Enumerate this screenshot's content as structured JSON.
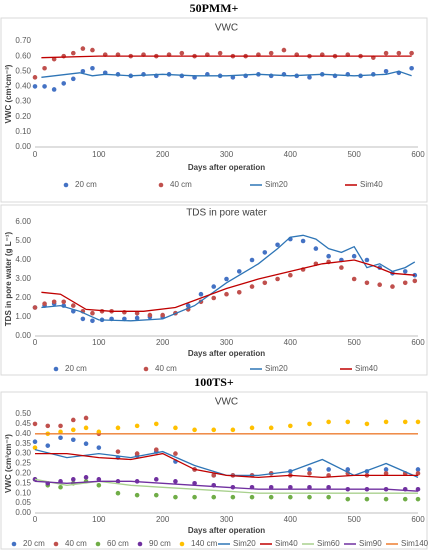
{
  "headings": [
    "50PMM+",
    "100TS+"
  ],
  "chart_data": [
    {
      "type": "scatter-line",
      "title": "VWC",
      "x_label": "Days after operation",
      "y_label": "VWC (cm³cm⁻³)",
      "xlim": [
        0,
        600
      ],
      "xticks": [
        0,
        100,
        200,
        300,
        400,
        500,
        600
      ],
      "ylim": [
        0,
        0.7
      ],
      "yticks": [
        {
          "value": 0,
          "label": "0.00"
        },
        {
          "value": 0.1,
          "label": "0.10"
        },
        {
          "value": 0.2,
          "label": "0.20"
        },
        {
          "value": 0.3,
          "label": "0.30"
        },
        {
          "value": 0.4,
          "label": "0.40"
        },
        {
          "value": 0.5,
          "label": "0.50"
        },
        {
          "value": 0.6,
          "label": "0.60"
        },
        {
          "value": 0.7,
          "label": "0.70"
        }
      ],
      "grid": false,
      "legend": "bottom",
      "series": [
        {
          "name": "20 cm",
          "color": "#4472c4",
          "style": "markers",
          "x": [
            0,
            15,
            30,
            45,
            60,
            75,
            90,
            110,
            130,
            150,
            170,
            190,
            210,
            230,
            250,
            270,
            290,
            310,
            330,
            350,
            370,
            390,
            410,
            430,
            450,
            470,
            490,
            510,
            530,
            550,
            570,
            590
          ],
          "values": [
            0.4,
            0.4,
            0.38,
            0.42,
            0.45,
            0.5,
            0.52,
            0.49,
            0.48,
            0.47,
            0.48,
            0.47,
            0.48,
            0.47,
            0.46,
            0.48,
            0.47,
            0.46,
            0.47,
            0.48,
            0.47,
            0.48,
            0.47,
            0.46,
            0.48,
            0.47,
            0.48,
            0.47,
            0.48,
            0.5,
            0.49,
            0.52
          ]
        },
        {
          "name": "40 cm",
          "color": "#c0504d",
          "style": "markers",
          "x": [
            0,
            15,
            30,
            45,
            60,
            75,
            90,
            110,
            130,
            150,
            170,
            190,
            210,
            230,
            250,
            270,
            290,
            310,
            330,
            350,
            370,
            390,
            410,
            430,
            450,
            470,
            490,
            510,
            530,
            550,
            570,
            590
          ],
          "values": [
            0.46,
            0.52,
            0.58,
            0.6,
            0.62,
            0.65,
            0.64,
            0.61,
            0.61,
            0.6,
            0.61,
            0.6,
            0.61,
            0.62,
            0.6,
            0.61,
            0.62,
            0.6,
            0.6,
            0.61,
            0.62,
            0.64,
            0.61,
            0.6,
            0.61,
            0.6,
            0.61,
            0.6,
            0.59,
            0.62,
            0.62,
            0.62
          ]
        },
        {
          "name": "Sim20",
          "color": "#2e75b6",
          "style": "line",
          "x": [
            10,
            30,
            50,
            70,
            90,
            110,
            150,
            200,
            250,
            300,
            350,
            400,
            450,
            500,
            550,
            570,
            590
          ],
          "values": [
            0.46,
            0.47,
            0.48,
            0.49,
            0.47,
            0.48,
            0.47,
            0.48,
            0.47,
            0.47,
            0.48,
            0.47,
            0.48,
            0.47,
            0.48,
            0.5,
            0.47
          ]
        },
        {
          "name": "Sim40",
          "color": "#c00000",
          "style": "line",
          "x": [
            10,
            100,
            200,
            300,
            400,
            500,
            590
          ],
          "values": [
            0.59,
            0.6,
            0.6,
            0.6,
            0.6,
            0.6,
            0.6
          ]
        }
      ]
    },
    {
      "type": "scatter-line",
      "title": "TDS in pore water",
      "x_label": "Days after operation",
      "y_label": "TDS in pore water (g L⁻¹)",
      "xlim": [
        0,
        600
      ],
      "xticks": [
        0,
        100,
        200,
        300,
        400,
        500,
        600
      ],
      "ylim": [
        0,
        6
      ],
      "yticks": [
        {
          "value": 0,
          "label": "0.00"
        },
        {
          "value": 1,
          "label": "1.00"
        },
        {
          "value": 2,
          "label": "2.00"
        },
        {
          "value": 3,
          "label": "3.00"
        },
        {
          "value": 4,
          "label": "4.00"
        },
        {
          "value": 5,
          "label": "5.00"
        },
        {
          "value": 6,
          "label": "6.00"
        }
      ],
      "grid": false,
      "legend": "bottom",
      "series": [
        {
          "name": "20 cm",
          "color": "#4472c4",
          "style": "markers",
          "x": [
            0,
            15,
            30,
            45,
            60,
            75,
            90,
            105,
            120,
            140,
            160,
            180,
            200,
            220,
            240,
            260,
            280,
            300,
            320,
            340,
            360,
            380,
            400,
            420,
            440,
            460,
            480,
            500,
            520,
            540,
            560,
            580,
            595
          ],
          "values": [
            1.5,
            1.6,
            1.7,
            1.6,
            1.3,
            0.9,
            0.8,
            0.85,
            0.9,
            0.9,
            0.95,
            1.0,
            1.0,
            1.2,
            1.6,
            2.2,
            2.6,
            3.0,
            3.4,
            4.0,
            4.4,
            4.8,
            5.1,
            5.0,
            4.6,
            4.2,
            4.0,
            4.2,
            4.0,
            3.6,
            3.3,
            3.4,
            3.2
          ]
        },
        {
          "name": "40 cm",
          "color": "#c0504d",
          "style": "markers",
          "x": [
            0,
            15,
            30,
            45,
            60,
            75,
            90,
            105,
            120,
            140,
            160,
            180,
            200,
            220,
            240,
            260,
            280,
            300,
            320,
            340,
            360,
            380,
            400,
            420,
            440,
            460,
            480,
            500,
            520,
            540,
            560,
            580,
            595
          ],
          "values": [
            1.5,
            1.7,
            1.8,
            1.8,
            1.6,
            1.3,
            1.2,
            1.3,
            1.3,
            1.25,
            1.2,
            1.1,
            1.1,
            1.2,
            1.4,
            1.8,
            2.0,
            2.2,
            2.3,
            2.6,
            2.8,
            3.0,
            3.2,
            3.5,
            3.8,
            3.9,
            3.6,
            3.0,
            2.8,
            2.7,
            2.6,
            2.8,
            2.9
          ]
        },
        {
          "name": "Sim20",
          "color": "#2e75b6",
          "style": "line",
          "x": [
            10,
            40,
            70,
            100,
            150,
            200,
            250,
            300,
            350,
            380,
            400,
            420,
            440,
            460,
            480,
            500,
            520,
            540,
            560,
            580,
            595
          ],
          "values": [
            1.5,
            1.6,
            1.3,
            0.85,
            0.8,
            0.9,
            1.6,
            2.8,
            3.8,
            4.6,
            5.2,
            5.3,
            5.1,
            4.6,
            4.4,
            4.7,
            3.6,
            3.8,
            3.4,
            3.6,
            3.9
          ]
        },
        {
          "name": "Sim40",
          "color": "#c00000",
          "style": "line",
          "x": [
            10,
            40,
            80,
            120,
            170,
            220,
            260,
            300,
            350,
            400,
            450,
            500,
            530,
            560,
            595
          ],
          "values": [
            2.3,
            2.2,
            1.4,
            1.3,
            1.3,
            1.5,
            2.0,
            2.5,
            3.0,
            3.4,
            3.8,
            4.0,
            3.7,
            3.3,
            3.2
          ]
        }
      ]
    },
    {
      "type": "scatter-line",
      "title": "VWC",
      "x_label": "Days after operation",
      "y_label": "VWC (cm³cm⁻³)",
      "xlim": [
        0,
        600
      ],
      "xticks": [
        0,
        100,
        200,
        300,
        400,
        500,
        600
      ],
      "ylim": [
        0,
        0.5
      ],
      "yticks": [
        {
          "value": 0,
          "label": "0.00"
        },
        {
          "value": 0.05,
          "label": "0.05"
        },
        {
          "value": 0.1,
          "label": "0.10"
        },
        {
          "value": 0.15,
          "label": "0.15"
        },
        {
          "value": 0.2,
          "label": "0.20"
        },
        {
          "value": 0.25,
          "label": "0.25"
        },
        {
          "value": 0.3,
          "label": "0.30"
        },
        {
          "value": 0.35,
          "label": "0.35"
        },
        {
          "value": 0.4,
          "label": "0.40"
        },
        {
          "value": 0.45,
          "label": "0.45"
        },
        {
          "value": 0.5,
          "label": "0.50"
        }
      ],
      "grid": false,
      "legend": "bottom",
      "series": [
        {
          "name": "20 cm",
          "color": "#4472c4",
          "style": "markers",
          "x": [
            0,
            20,
            40,
            60,
            80,
            100,
            130,
            160,
            190,
            220,
            250,
            280,
            310,
            340,
            370,
            400,
            430,
            460,
            490,
            520,
            550,
            580,
            600
          ],
          "values": [
            0.36,
            0.34,
            0.38,
            0.37,
            0.35,
            0.33,
            0.28,
            0.29,
            0.31,
            0.26,
            0.22,
            0.19,
            0.19,
            0.19,
            0.2,
            0.21,
            0.22,
            0.22,
            0.22,
            0.21,
            0.22,
            0.2,
            0.22
          ]
        },
        {
          "name": "40 cm",
          "color": "#c0504d",
          "style": "markers",
          "x": [
            0,
            20,
            40,
            60,
            80,
            100,
            130,
            160,
            190,
            220,
            250,
            280,
            310,
            340,
            370,
            400,
            430,
            460,
            490,
            520,
            550,
            580,
            600
          ],
          "values": [
            0.45,
            0.44,
            0.44,
            0.47,
            0.48,
            0.4,
            0.31,
            0.3,
            0.32,
            0.3,
            0.22,
            0.19,
            0.19,
            0.19,
            0.2,
            0.19,
            0.2,
            0.19,
            0.2,
            0.19,
            0.2,
            0.2,
            0.2
          ]
        },
        {
          "name": "60 cm",
          "color": "#70ad47",
          "style": "markers",
          "x": [
            0,
            20,
            40,
            60,
            80,
            100,
            130,
            160,
            190,
            220,
            250,
            280,
            310,
            340,
            370,
            400,
            430,
            460,
            490,
            520,
            550,
            580,
            600
          ],
          "values": [
            0.17,
            0.14,
            0.13,
            0.15,
            0.16,
            0.14,
            0.1,
            0.09,
            0.09,
            0.08,
            0.08,
            0.08,
            0.08,
            0.08,
            0.08,
            0.08,
            0.08,
            0.08,
            0.07,
            0.07,
            0.07,
            0.07,
            0.07
          ]
        },
        {
          "name": "90 cm",
          "color": "#7030a0",
          "style": "markers",
          "x": [
            0,
            20,
            40,
            60,
            80,
            100,
            130,
            160,
            190,
            220,
            250,
            280,
            310,
            340,
            370,
            400,
            430,
            460,
            490,
            520,
            550,
            580,
            600
          ],
          "values": [
            0.17,
            0.15,
            0.16,
            0.17,
            0.18,
            0.17,
            0.16,
            0.16,
            0.17,
            0.16,
            0.15,
            0.14,
            0.13,
            0.13,
            0.13,
            0.13,
            0.13,
            0.13,
            0.12,
            0.12,
            0.12,
            0.12,
            0.12
          ]
        },
        {
          "name": "140 cm",
          "color": "#ffc000",
          "style": "markers",
          "x": [
            0,
            20,
            40,
            60,
            80,
            100,
            130,
            160,
            190,
            220,
            250,
            280,
            310,
            340,
            370,
            400,
            430,
            460,
            490,
            520,
            550,
            580,
            600
          ],
          "values": [
            0.33,
            0.4,
            0.41,
            0.42,
            0.43,
            0.41,
            0.43,
            0.44,
            0.45,
            0.43,
            0.42,
            0.42,
            0.42,
            0.43,
            0.43,
            0.44,
            0.45,
            0.46,
            0.46,
            0.45,
            0.46,
            0.46,
            0.46
          ]
        },
        {
          "name": "Sim20",
          "color": "#2e75b6",
          "style": "line",
          "x": [
            0,
            50,
            100,
            150,
            200,
            250,
            300,
            350,
            400,
            450,
            500,
            550,
            600
          ],
          "values": [
            0.32,
            0.28,
            0.3,
            0.28,
            0.31,
            0.24,
            0.19,
            0.19,
            0.21,
            0.27,
            0.19,
            0.25,
            0.18
          ]
        },
        {
          "name": "Sim40",
          "color": "#c00000",
          "style": "line",
          "x": [
            0,
            50,
            100,
            150,
            200,
            250,
            300,
            350,
            400,
            450,
            500,
            550,
            600
          ],
          "values": [
            0.3,
            0.3,
            0.28,
            0.27,
            0.3,
            0.22,
            0.19,
            0.18,
            0.19,
            0.18,
            0.19,
            0.19,
            0.19
          ]
        },
        {
          "name": "Sim60",
          "color": "#a9d18e",
          "style": "line",
          "x": [
            0,
            50,
            100,
            150,
            200,
            250,
            300,
            350,
            400,
            450,
            500,
            550,
            600
          ],
          "values": [
            0.17,
            0.14,
            0.16,
            0.14,
            0.13,
            0.12,
            0.11,
            0.1,
            0.1,
            0.1,
            0.1,
            0.1,
            0.1
          ]
        },
        {
          "name": "Sim90",
          "color": "#7030a0",
          "style": "line",
          "x": [
            0,
            50,
            100,
            150,
            200,
            250,
            300,
            350,
            400,
            450,
            500,
            550,
            600
          ],
          "values": [
            0.16,
            0.15,
            0.16,
            0.16,
            0.15,
            0.14,
            0.13,
            0.12,
            0.12,
            0.12,
            0.12,
            0.12,
            0.11
          ]
        },
        {
          "name": "Sim140",
          "color": "#ed7d31",
          "style": "line",
          "x": [
            0,
            50,
            100,
            150,
            200,
            250,
            300,
            350,
            400,
            450,
            500,
            550,
            600
          ],
          "values": [
            0.4,
            0.4,
            0.4,
            0.4,
            0.4,
            0.4,
            0.4,
            0.4,
            0.4,
            0.4,
            0.4,
            0.4,
            0.4
          ]
        }
      ]
    }
  ]
}
